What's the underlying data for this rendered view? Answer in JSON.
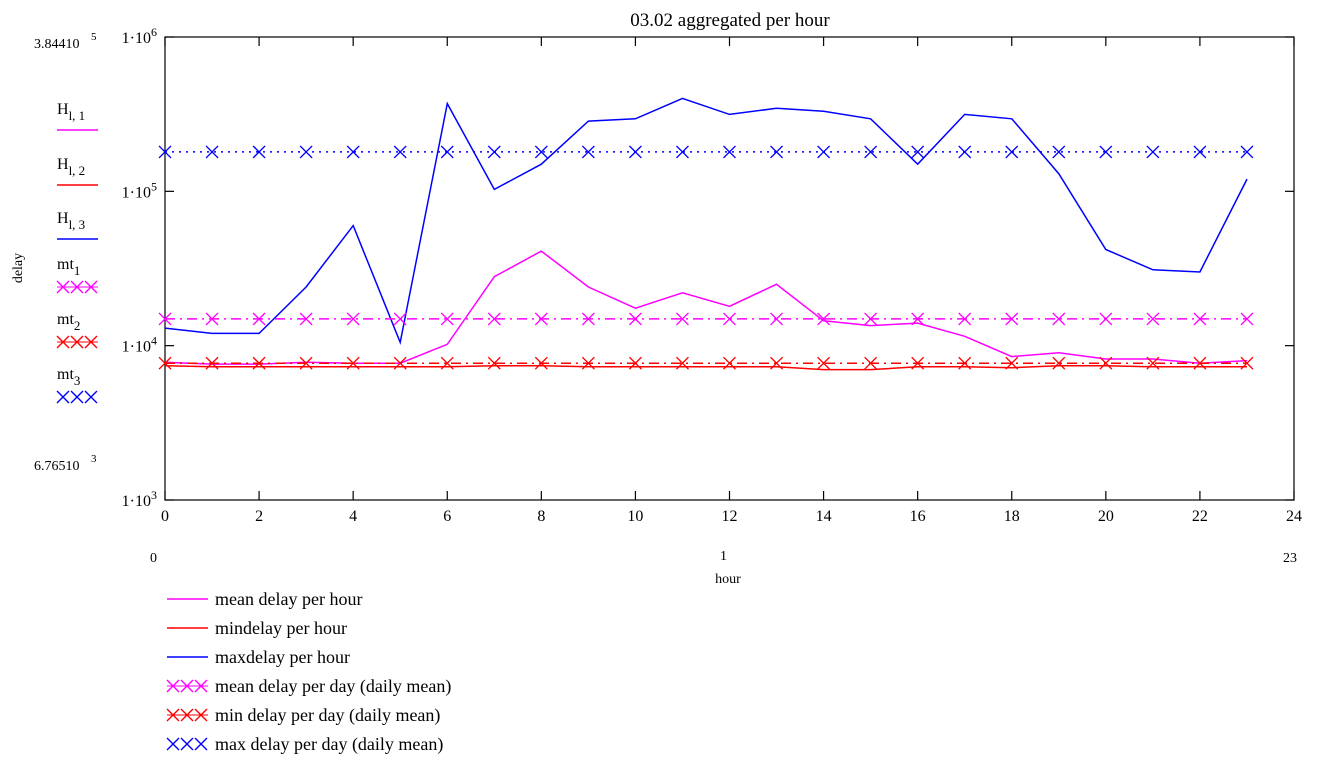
{
  "chart_data": {
    "type": "line",
    "title": "03.02 aggregated per hour",
    "xlabel": "hour",
    "ylabel": "delay",
    "y_scale": "log",
    "ylim": [
      1000,
      1000000
    ],
    "xlim": [
      0,
      24
    ],
    "x_ticks": [
      "0",
      "2",
      "4",
      "6",
      "8",
      "10",
      "12",
      "14",
      "16",
      "18",
      "20",
      "22",
      "24"
    ],
    "y_ticks": [
      {
        "value": 1000,
        "base": "1·10",
        "exp": "3"
      },
      {
        "value": 10000,
        "base": "1·10",
        "exp": "4"
      },
      {
        "value": 100000,
        "base": "1·10",
        "exp": "5"
      },
      {
        "value": 1000000,
        "base": "1·10",
        "exp": "6"
      }
    ],
    "y_range_labels": {
      "top": "3.84410",
      "top_exp": "5",
      "bottom": "6.76510",
      "bottom_exp": "3"
    },
    "x_range_labels": {
      "left": "0",
      "mid": "1",
      "right": "23"
    },
    "x": [
      0,
      1,
      2,
      3,
      4,
      5,
      6,
      7,
      8,
      9,
      10,
      11,
      12,
      13,
      14,
      15,
      16,
      17,
      18,
      19,
      20,
      21,
      22,
      23
    ],
    "series": [
      {
        "name": "mean delay per hour",
        "axis_label": "H",
        "axis_sub": "l, 1",
        "color": "#ff00ff",
        "style": "solid",
        "values": [
          7800,
          7600,
          7600,
          7800,
          7700,
          7700,
          10200,
          28000,
          41000,
          24000,
          17500,
          22000,
          18000,
          25000,
          14500,
          13500,
          14000,
          11500,
          8500,
          9000,
          8200,
          8200,
          7700,
          8000
        ]
      },
      {
        "name": "mindelay per hour",
        "axis_label": "H",
        "axis_sub": "l, 2",
        "color": "#ff0000",
        "style": "solid",
        "values": [
          7400,
          7300,
          7300,
          7300,
          7300,
          7300,
          7300,
          7400,
          7400,
          7300,
          7300,
          7300,
          7300,
          7300,
          7000,
          7000,
          7300,
          7300,
          7200,
          7400,
          7400,
          7300,
          7300,
          7300
        ]
      },
      {
        "name": "maxdelay per hour",
        "axis_label": "H",
        "axis_sub": "l, 3",
        "color": "#0000ff",
        "style": "solid",
        "values": [
          13000,
          12000,
          12000,
          24000,
          60000,
          10500,
          370000,
          103000,
          150000,
          285000,
          295000,
          400000,
          315000,
          345000,
          330000,
          295000,
          150000,
          315000,
          295000,
          130000,
          42000,
          31000,
          30000,
          120000
        ]
      },
      {
        "name": "mean delay per day (daily mean)",
        "axis_label": "mt",
        "axis_sub": "1",
        "color": "#ff00ff",
        "style": "dashdot-x",
        "values": [
          14900,
          14900,
          14900,
          14900,
          14900,
          14900,
          14900,
          14900,
          14900,
          14900,
          14900,
          14900,
          14900,
          14900,
          14900,
          14900,
          14900,
          14900,
          14900,
          14900,
          14900,
          14900,
          14900,
          14900
        ]
      },
      {
        "name": "min delay per day (daily mean)",
        "axis_label": "mt",
        "axis_sub": "2",
        "color": "#ff0000",
        "style": "dashdot-x",
        "values": [
          7700,
          7700,
          7700,
          7700,
          7700,
          7700,
          7700,
          7700,
          7700,
          7700,
          7700,
          7700,
          7700,
          7700,
          7700,
          7700,
          7700,
          7700,
          7700,
          7700,
          7700,
          7700,
          7700,
          7700
        ]
      },
      {
        "name": "max delay per day (daily mean)",
        "axis_label": "mt",
        "axis_sub": "3",
        "color": "#0000ff",
        "style": "dot-x",
        "values": [
          180000,
          180000,
          180000,
          180000,
          180000,
          180000,
          180000,
          180000,
          180000,
          180000,
          180000,
          180000,
          180000,
          180000,
          180000,
          180000,
          180000,
          180000,
          180000,
          180000,
          180000,
          180000,
          180000,
          180000
        ]
      }
    ]
  }
}
